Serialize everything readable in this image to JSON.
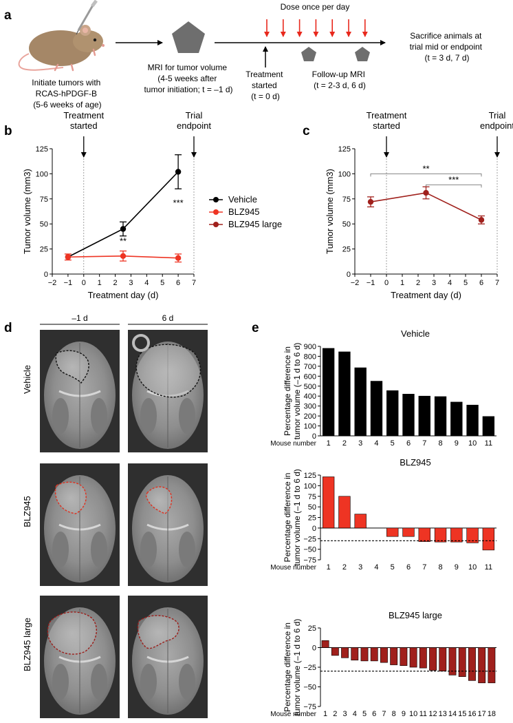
{
  "panel_a": {
    "label": "a",
    "dose_label": "Dose once per day",
    "step1": [
      "Initiate tumors with",
      "RCAS-hPDGF-B",
      "(5-6 weeks of age)"
    ],
    "step2": [
      "MRI for tumor volume",
      "(4-5 weeks after",
      "tumor initiation; t = –1 d)"
    ],
    "step3": [
      "Treatment",
      "started",
      "(t = 0 d)"
    ],
    "step4": [
      "Follow-up MRI",
      "(t = 2-3 d, 6 d)"
    ],
    "step5": [
      "Sacrifice animals at",
      "trial mid or endpoint",
      "(t = 3 d, 7 d)"
    ],
    "colors": {
      "arrow_red": "#e8281c",
      "pentagon": "#6e6e6e",
      "mouse": "#a58767"
    }
  },
  "legend": {
    "items": [
      "Vehicle",
      "BLZ945",
      "BLZ945 large"
    ]
  },
  "panel_d": {
    "label": "d",
    "col_labels": [
      "–1 d",
      "6 d"
    ],
    "row_labels": [
      "Vehicle",
      "BLZ945",
      "BLZ945 large"
    ]
  },
  "chart_data": [
    {
      "id": "b",
      "label": "b",
      "type": "line",
      "xlabel": "Treatment day (d)",
      "ylabel": "Tumor volume (mm3)",
      "xlim": [
        -2,
        7
      ],
      "ylim": [
        0,
        125
      ],
      "xticks": [
        -2,
        -1,
        0,
        1,
        2,
        3,
        4,
        5,
        6,
        7
      ],
      "yticks": [
        0,
        25,
        50,
        75,
        100,
        125
      ],
      "annotations": [
        {
          "text": [
            "Treatment",
            "started"
          ],
          "x": 0
        },
        {
          "text": [
            "Trial",
            "endpoint"
          ],
          "x": 7
        }
      ],
      "significance": [
        {
          "text": "**",
          "x": 2.5
        },
        {
          "text": "***",
          "x": 6
        }
      ],
      "series": [
        {
          "name": "Vehicle",
          "color": "#000000",
          "x": [
            -1,
            2.5,
            6
          ],
          "y": [
            17,
            45,
            102
          ],
          "err": [
            0,
            7,
            17
          ]
        },
        {
          "name": "BLZ945",
          "color": "#ee3423",
          "x": [
            -1,
            2.5,
            6
          ],
          "y": [
            17,
            18,
            16
          ],
          "err": [
            3,
            5,
            4
          ]
        }
      ]
    },
    {
      "id": "c",
      "label": "c",
      "type": "line",
      "xlabel": "Treatment day (d)",
      "ylabel": "Tumor volume (mm3)",
      "xlim": [
        -2,
        7
      ],
      "ylim": [
        0,
        125
      ],
      "xticks": [
        -2,
        -1,
        0,
        1,
        2,
        3,
        4,
        5,
        6,
        7
      ],
      "yticks": [
        0,
        25,
        50,
        75,
        100,
        125
      ],
      "annotations": [
        {
          "text": [
            "Treatment",
            "started"
          ],
          "x": 0
        },
        {
          "text": [
            "Trial",
            "endpoint"
          ],
          "x": 7
        }
      ],
      "brackets": [
        {
          "text": "**",
          "x1": -1,
          "x2": 6,
          "y": 100
        },
        {
          "text": "***",
          "x1": 2.5,
          "x2": 6,
          "y": 89
        }
      ],
      "series": [
        {
          "name": "BLZ945 large",
          "color": "#a0201c",
          "x": [
            -1,
            2.5,
            6
          ],
          "y": [
            72,
            81,
            54
          ],
          "err": [
            5,
            6,
            4
          ]
        }
      ]
    },
    {
      "id": "e1",
      "label": "e",
      "type": "bar",
      "title": "Vehicle",
      "color": "#000000",
      "ylabel": [
        "Percentage difference in",
        "tumor volume (–1 d to 6 d)"
      ],
      "xlabel": "Mouse number",
      "ylim": [
        0,
        900
      ],
      "yticks": [
        0,
        100,
        200,
        300,
        400,
        500,
        600,
        700,
        800,
        900
      ],
      "categories": [
        "1",
        "2",
        "3",
        "4",
        "5",
        "6",
        "7",
        "8",
        "9",
        "10",
        "11"
      ],
      "values": [
        880,
        845,
        685,
        550,
        455,
        420,
        400,
        395,
        340,
        310,
        195
      ]
    },
    {
      "id": "e2",
      "type": "bar",
      "title": "BLZ945",
      "color": "#ee3423",
      "ylabel": [
        "Percentage difference in",
        "tumor volume (–1 d to 6 d)"
      ],
      "xlabel": "Mouse number",
      "ylim": [
        -75,
        125
      ],
      "yticks": [
        125,
        100,
        75,
        50,
        25,
        0,
        -25,
        -50,
        -75
      ],
      "ref_line": -30,
      "categories": [
        "1",
        "2",
        "3",
        "4",
        "5",
        "6",
        "7",
        "8",
        "9",
        "10",
        "11"
      ],
      "values": [
        121,
        75,
        33,
        0,
        -20,
        -20,
        -32,
        -33,
        -33,
        -35,
        -52
      ]
    },
    {
      "id": "e3",
      "type": "bar",
      "title": "BLZ945 large",
      "color": "#a0201c",
      "ylabel": [
        "Percentage difference in",
        "tumor volume (–1 d to 6 d)"
      ],
      "xlabel": "Mouse number",
      "ylim": [
        -75,
        25
      ],
      "yticks": [
        25,
        0,
        -25,
        -50,
        -75
      ],
      "ref_line": -30,
      "categories": [
        "1",
        "2",
        "3",
        "4",
        "5",
        "6",
        "7",
        "8",
        "9",
        "10",
        "11",
        "12",
        "13",
        "14",
        "15",
        "16",
        "17",
        "18"
      ],
      "values": [
        9,
        -10,
        -13,
        -16,
        -17,
        -17,
        -19,
        -22,
        -23,
        -25,
        -26,
        -29,
        -30,
        -35,
        -37,
        -42,
        -45,
        -45
      ]
    }
  ]
}
